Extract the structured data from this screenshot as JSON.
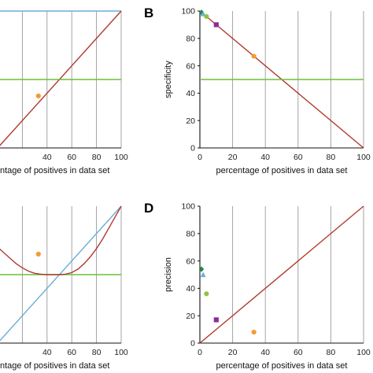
{
  "colors": {
    "red": "#b03a2e",
    "green": "#6cbf3a",
    "blue": "#6aaed6",
    "orange": "#f39c34",
    "purple": "#8e2c97",
    "teal_green": "#1e8a4c",
    "light_green": "#8cc63f",
    "grid": "#9a9a9a",
    "axis": "#111111"
  },
  "chart_data": [
    {
      "panel": "A",
      "type": "line",
      "letter": "",
      "title": "",
      "xlabel": "ntage of positives in data set",
      "ylabel": "",
      "xlim": [
        0,
        100
      ],
      "ylim": [
        0,
        100
      ],
      "x_ticks": [
        40,
        60,
        80,
        100
      ],
      "y_ticks": [],
      "grid": "vertical",
      "series": [
        {
          "kind": "line",
          "color": "blue",
          "points": [
            [
              0,
              100
            ],
            [
              100,
              100
            ]
          ]
        },
        {
          "kind": "line",
          "color": "red",
          "points": [
            [
              0,
              0
            ],
            [
              100,
              100
            ]
          ]
        },
        {
          "kind": "line",
          "color": "green",
          "points": [
            [
              0,
              50
            ],
            [
              100,
              50
            ]
          ]
        },
        {
          "kind": "scatter",
          "marker": "circle",
          "color": "orange",
          "points": [
            [
              33,
              38
            ]
          ]
        }
      ]
    },
    {
      "panel": "B",
      "type": "line",
      "letter": "B",
      "title": "",
      "xlabel": "percentage of positives in data set",
      "ylabel": "specificity",
      "xlim": [
        0,
        100
      ],
      "ylim": [
        0,
        100
      ],
      "x_ticks": [
        0,
        20,
        40,
        60,
        80,
        100
      ],
      "y_ticks": [
        0,
        20,
        40,
        60,
        80,
        100
      ],
      "grid": "vertical",
      "series": [
        {
          "kind": "line",
          "color": "red",
          "points": [
            [
              0,
              100
            ],
            [
              100,
              0
            ]
          ]
        },
        {
          "kind": "line",
          "color": "green",
          "points": [
            [
              0,
              50
            ],
            [
              100,
              50
            ]
          ]
        },
        {
          "kind": "scatter",
          "marker": "diamond",
          "color": "teal_green",
          "points": [
            [
              1,
              99
            ]
          ]
        },
        {
          "kind": "scatter",
          "marker": "triangle",
          "color": "blue",
          "points": [
            [
              2,
              98
            ]
          ]
        },
        {
          "kind": "scatter",
          "marker": "circle",
          "color": "light_green",
          "points": [
            [
              4,
              96
            ]
          ]
        },
        {
          "kind": "scatter",
          "marker": "square",
          "color": "purple",
          "points": [
            [
              10,
              90
            ]
          ]
        },
        {
          "kind": "scatter",
          "marker": "circle",
          "color": "orange",
          "points": [
            [
              33,
              67
            ]
          ]
        }
      ]
    },
    {
      "panel": "C",
      "type": "line",
      "letter": "",
      "title": "",
      "xlabel": "ntage of positives in data set",
      "ylabel": "",
      "xlim": [
        0,
        100
      ],
      "ylim": [
        0,
        100
      ],
      "x_ticks": [
        40,
        60,
        80,
        100
      ],
      "y_ticks": [],
      "grid": "vertical",
      "series": [
        {
          "kind": "line",
          "color": "blue",
          "points": [
            [
              0,
              0
            ],
            [
              100,
              100
            ]
          ]
        },
        {
          "kind": "line",
          "color": "green",
          "points": [
            [
              0,
              50
            ],
            [
              100,
              50
            ]
          ]
        },
        {
          "kind": "curve",
          "color": "red",
          "points": [
            [
              0,
              70
            ],
            [
              5,
              66
            ],
            [
              10,
              62
            ],
            [
              15,
              58
            ],
            [
              20,
              55
            ],
            [
              25,
              52.5
            ],
            [
              30,
              51
            ],
            [
              35,
              50.3
            ],
            [
              40,
              50
            ],
            [
              45,
              50
            ],
            [
              50,
              50
            ],
            [
              55,
              50.3
            ],
            [
              60,
              51.5
            ],
            [
              65,
              54
            ],
            [
              70,
              58
            ],
            [
              75,
              63
            ],
            [
              80,
              69
            ],
            [
              85,
              76
            ],
            [
              90,
              84
            ],
            [
              95,
              92
            ],
            [
              100,
              100
            ]
          ]
        },
        {
          "kind": "scatter",
          "marker": "circle",
          "color": "orange",
          "points": [
            [
              33,
              65
            ]
          ]
        }
      ]
    },
    {
      "panel": "D",
      "type": "line",
      "letter": "D",
      "title": "",
      "xlabel": "percentage of positives in data set",
      "ylabel": "precision",
      "xlim": [
        0,
        100
      ],
      "ylim": [
        0,
        100
      ],
      "x_ticks": [
        0,
        20,
        40,
        60,
        80,
        100
      ],
      "y_ticks": [
        0,
        20,
        40,
        60,
        80,
        100
      ],
      "grid": "vertical",
      "series": [
        {
          "kind": "line",
          "color": "red",
          "points": [
            [
              0,
              0
            ],
            [
              100,
              100
            ]
          ]
        },
        {
          "kind": "scatter",
          "marker": "diamond",
          "color": "teal_green",
          "points": [
            [
              1,
              54
            ]
          ]
        },
        {
          "kind": "scatter",
          "marker": "triangle",
          "color": "blue",
          "points": [
            [
              2,
              50
            ]
          ]
        },
        {
          "kind": "scatter",
          "marker": "circle",
          "color": "light_green",
          "points": [
            [
              4,
              36
            ]
          ]
        },
        {
          "kind": "scatter",
          "marker": "square",
          "color": "purple",
          "points": [
            [
              10,
              17
            ]
          ]
        },
        {
          "kind": "scatter",
          "marker": "circle",
          "color": "orange",
          "points": [
            [
              33,
              8
            ]
          ]
        }
      ]
    }
  ]
}
